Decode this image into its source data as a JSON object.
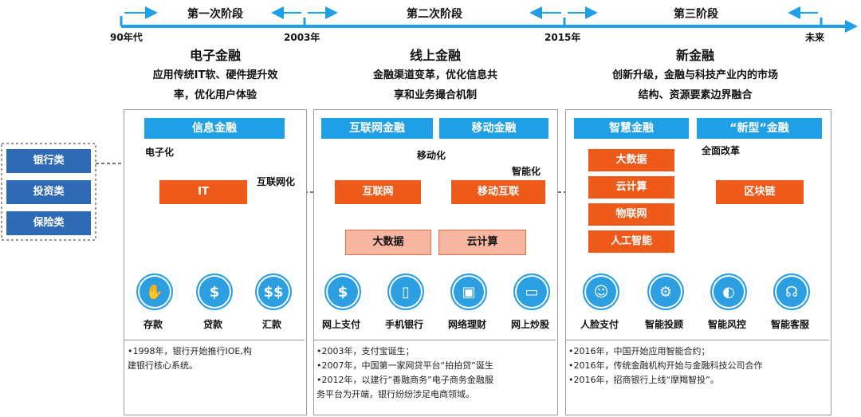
{
  "timeline": {
    "stages": [
      "第一次阶段",
      "第二次阶段",
      "第三阶段"
    ],
    "ticks": [
      "90年代",
      "2003年",
      "2015年",
      "未来"
    ]
  },
  "columns": [
    {
      "title": "电子金融",
      "subtitle": [
        "应用传统IT软、硬件提升效",
        "率，优化用户体验"
      ],
      "headers": [
        "信息金融"
      ],
      "icons": [
        {
          "icon": "deposit-icon",
          "label": "存款"
        },
        {
          "icon": "loan-bag-icon",
          "label": "贷款"
        },
        {
          "icon": "remittance-icon",
          "label": "汇款"
        }
      ],
      "notes": [
        "•1998年，银行开始推行IOE,构",
        "建银行核心系统。"
      ]
    },
    {
      "title": "线上金融",
      "subtitle": [
        "金融渠道变革，优化信息共",
        "享和业务撮合机制"
      ],
      "headers": [
        "互联网金融",
        "移动金融"
      ],
      "icons": [
        {
          "icon": "online-payment-icon",
          "label": "网上支付"
        },
        {
          "icon": "mobile-banking-icon",
          "label": "手机银行"
        },
        {
          "icon": "wealth-management-icon",
          "label": "网络理财"
        },
        {
          "icon": "online-trading-icon",
          "label": "网上炒股"
        }
      ],
      "notes": [
        "•2003年，支付宝诞生；",
        "•2007年，中国第一家网贷平台“拍拍贷”诞生",
        "•2012年，以建行“善融商务”电子商务金融服",
        "务平台为开端，银行纷纷涉足电商领域。"
      ]
    },
    {
      "title": "新金融",
      "subtitle": [
        "创新升级，金融与科技产业内的市场",
        "结构、资源要素边界融合"
      ],
      "headers": [
        "智慧金融",
        "“新型”金融"
      ],
      "icons": [
        {
          "icon": "face-payment-icon",
          "label": "人脸支付"
        },
        {
          "icon": "smart-advisor-icon",
          "label": "智能投顾"
        },
        {
          "icon": "smart-risk-icon",
          "label": "智能风控"
        },
        {
          "icon": "smart-service-icon",
          "label": "智能客服"
        }
      ],
      "notes": [
        "•2016年，中国开始应用智能合约；",
        "•2016年，传统金融机构开始与金融科技公司合作",
        "•2016年，招商银行上线“摩羯智投”。"
      ]
    }
  ],
  "left_boxes": [
    "银行类",
    "投资类",
    "保险类"
  ],
  "nodes": {
    "it": "IT",
    "internet": "互联网",
    "mobile_internet": "移动互联",
    "big_data": "大数据",
    "cloud": "云计算",
    "blockchain": "区块链",
    "tech_stack": [
      "大数据",
      "云计算",
      "物联网",
      "人工智能"
    ]
  },
  "edge_labels": {
    "electronify": "电子化",
    "internetify": "互联网化",
    "mobilize": "移动化",
    "intelligentize": "智能化",
    "overhaul": "全面改革"
  },
  "colors": {
    "timeline_blue": "#1e9fe6",
    "header_blue": "#1e9fe6",
    "node_orange": "#ee5a19",
    "node_peach": "#f6b6a0",
    "category_blue": "#2f6ab4"
  }
}
